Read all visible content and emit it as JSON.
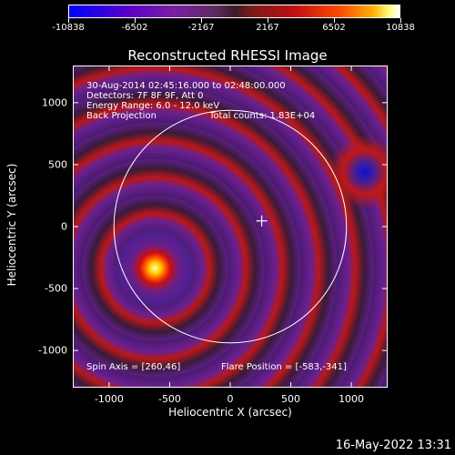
{
  "colorbar": {
    "ticks": [
      "-10838",
      "-6502",
      "-2167",
      "2167",
      "6502",
      "10838"
    ],
    "min": -10838,
    "max": 10838
  },
  "chart_data": {
    "type": "heatmap",
    "title": "Reconstructed RHESSI Image",
    "xlabel": "Heliocentric X (arcsec)",
    "ylabel": "Heliocentric Y (arcsec)",
    "xlim": [
      -1300,
      1300
    ],
    "ylim": [
      -1300,
      1300
    ],
    "x_ticks": [
      -1000,
      -500,
      0,
      500,
      1000
    ],
    "y_ticks": [
      -1000,
      -500,
      0,
      500,
      1000
    ],
    "colormap_range": [
      -10838,
      10838
    ],
    "solar_disk": {
      "center": [
        0,
        0
      ],
      "radius": 960
    },
    "flare_marker": [
      260,
      46
    ],
    "peak_source": [
      -583,
      -341
    ]
  },
  "info": {
    "time": "30-Aug-2014 02:45:16.000 to 02:48:00.000",
    "detectors": "Detectors: 7F 8F 9F, Att 0",
    "energy": "Energy Range: 6.0 - 12.0 keV",
    "method": "Back Projection",
    "counts": "Total counts: 1.83E+04",
    "spin_axis": "Spin Axis = [260,46]",
    "flare_position": "Flare Position = [-583,-341]"
  },
  "footer": {
    "date": "16-May-2022 13:31"
  },
  "colors": {
    "background": "#000000",
    "foreground": "#ffffff"
  }
}
